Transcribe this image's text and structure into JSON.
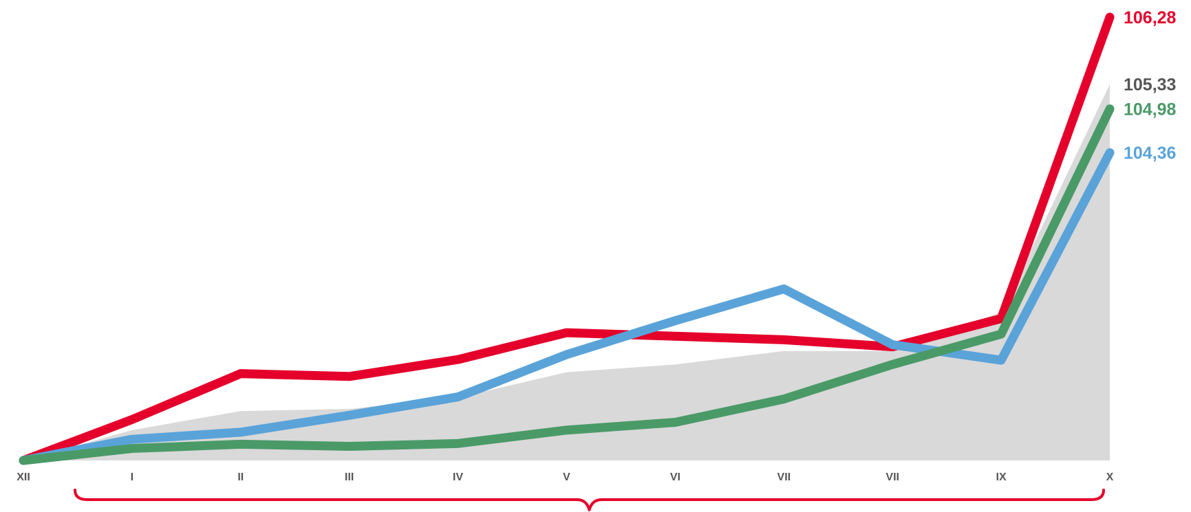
{
  "chart_data": {
    "type": "line",
    "categories": [
      "XII",
      "I",
      "II",
      "III",
      "IV",
      "V",
      "VI",
      "VII",
      "VII",
      "IX",
      "X"
    ],
    "series": [
      {
        "kind": "area",
        "color": "#d9d9d9",
        "values": [
          100.0,
          100.43,
          100.7,
          100.73,
          100.89,
          101.25,
          101.36,
          101.55,
          101.55,
          102.1,
          105.33
        ],
        "end_label": "105,33",
        "label_color": "#555555"
      },
      {
        "kind": "line",
        "color": "#e4002b",
        "values": [
          100.0,
          100.58,
          101.23,
          101.19,
          101.43,
          101.81,
          101.76,
          101.71,
          101.61,
          102.01,
          106.28
        ],
        "end_label": "106,28",
        "label_color": "#e4002b"
      },
      {
        "kind": "line",
        "color": "#5aa3d9",
        "values": [
          100.0,
          100.3,
          100.4,
          100.64,
          100.9,
          101.5,
          101.98,
          102.43,
          101.64,
          101.42,
          104.36
        ],
        "end_label": "104,36",
        "label_color": "#5aa3d9"
      },
      {
        "kind": "line",
        "color": "#4a9a68",
        "values": [
          100.0,
          100.17,
          100.23,
          100.2,
          100.24,
          100.43,
          100.54,
          100.87,
          101.36,
          101.79,
          104.98
        ],
        "end_label": "104,98",
        "label_color": "#4a9a68"
      }
    ],
    "brace_color": "#e4002b",
    "grid": false
  }
}
